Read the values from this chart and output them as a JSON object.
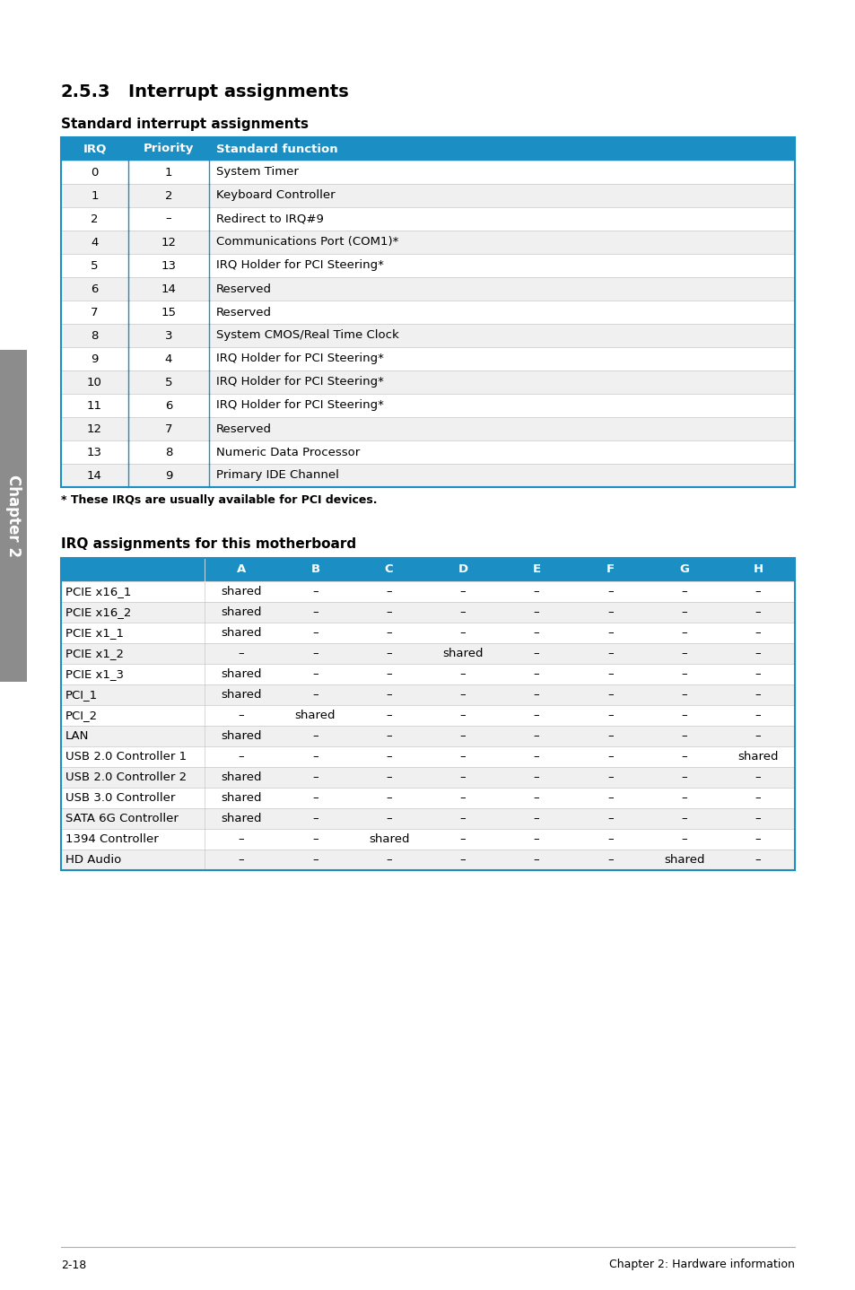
{
  "page_bg": "#ffffff",
  "header_bg": "#1b8fc4",
  "row_alt_bg": "#f0f0f0",
  "row_bg": "#ffffff",
  "border_color": "#1b8fc4",
  "inner_border_color": "#c8c8c8",
  "text_color": "#000000",
  "section_title_num": "2.5.3",
  "section_title_text": "Interrupt assignments",
  "subtitle1": "Standard interrupt assignments",
  "subtitle2": "IRQ assignments for this motherboard",
  "footnote": "* These IRQs are usually available for PCI devices.",
  "footer_left": "2-18",
  "footer_right": "Chapter 2: Hardware information",
  "sidebar_text": "Chapter 2",
  "sidebar_bg": "#8c8c8c",
  "table1_headers": [
    "IRQ",
    "Priority",
    "Standard function"
  ],
  "table1_rows": [
    [
      "0",
      "1",
      "System Timer"
    ],
    [
      "1",
      "2",
      "Keyboard Controller"
    ],
    [
      "2",
      "–",
      "Redirect to IRQ#9"
    ],
    [
      "4",
      "12",
      "Communications Port (COM1)*"
    ],
    [
      "5",
      "13",
      "IRQ Holder for PCI Steering*"
    ],
    [
      "6",
      "14",
      "Reserved"
    ],
    [
      "7",
      "15",
      "Reserved"
    ],
    [
      "8",
      "3",
      "System CMOS/Real Time Clock"
    ],
    [
      "9",
      "4",
      "IRQ Holder for PCI Steering*"
    ],
    [
      "10",
      "5",
      "IRQ Holder for PCI Steering*"
    ],
    [
      "11",
      "6",
      "IRQ Holder for PCI Steering*"
    ],
    [
      "12",
      "7",
      "Reserved"
    ],
    [
      "13",
      "8",
      "Numeric Data Processor"
    ],
    [
      "14",
      "9",
      "Primary IDE Channel"
    ]
  ],
  "table2_headers": [
    "",
    "A",
    "B",
    "C",
    "D",
    "E",
    "F",
    "G",
    "H"
  ],
  "table2_rows": [
    [
      "PCIE x16_1",
      "shared",
      "–",
      "–",
      "–",
      "–",
      "–",
      "–",
      "–"
    ],
    [
      "PCIE x16_2",
      "shared",
      "–",
      "–",
      "–",
      "–",
      "–",
      "–",
      "–"
    ],
    [
      "PCIE x1_1",
      "shared",
      "–",
      "–",
      "–",
      "–",
      "–",
      "–",
      "–"
    ],
    [
      "PCIE x1_2",
      "–",
      "–",
      "–",
      "shared",
      "–",
      "–",
      "–",
      "–"
    ],
    [
      "PCIE x1_3",
      "shared",
      "–",
      "–",
      "–",
      "–",
      "–",
      "–",
      "–"
    ],
    [
      "PCI_1",
      "shared",
      "–",
      "–",
      "–",
      "–",
      "–",
      "–",
      "–"
    ],
    [
      "PCI_2",
      "–",
      "shared",
      "–",
      "–",
      "–",
      "–",
      "–",
      "–"
    ],
    [
      "LAN",
      "shared",
      "–",
      "–",
      "–",
      "–",
      "–",
      "–",
      "–"
    ],
    [
      "USB 2.0 Controller 1",
      "–",
      "–",
      "–",
      "–",
      "–",
      "–",
      "–",
      "shared"
    ],
    [
      "USB 2.0 Controller 2",
      "shared",
      "–",
      "–",
      "–",
      "–",
      "–",
      "–",
      "–"
    ],
    [
      "USB 3.0 Controller",
      "shared",
      "–",
      "–",
      "–",
      "–",
      "–",
      "–",
      "–"
    ],
    [
      "SATA 6G Controller",
      "shared",
      "–",
      "–",
      "–",
      "–",
      "–",
      "–",
      "–"
    ],
    [
      "1394 Controller",
      "–",
      "–",
      "shared",
      "–",
      "–",
      "–",
      "–",
      "–"
    ],
    [
      "HD Audio",
      "–",
      "–",
      "–",
      "–",
      "–",
      "–",
      "shared",
      "–"
    ]
  ]
}
